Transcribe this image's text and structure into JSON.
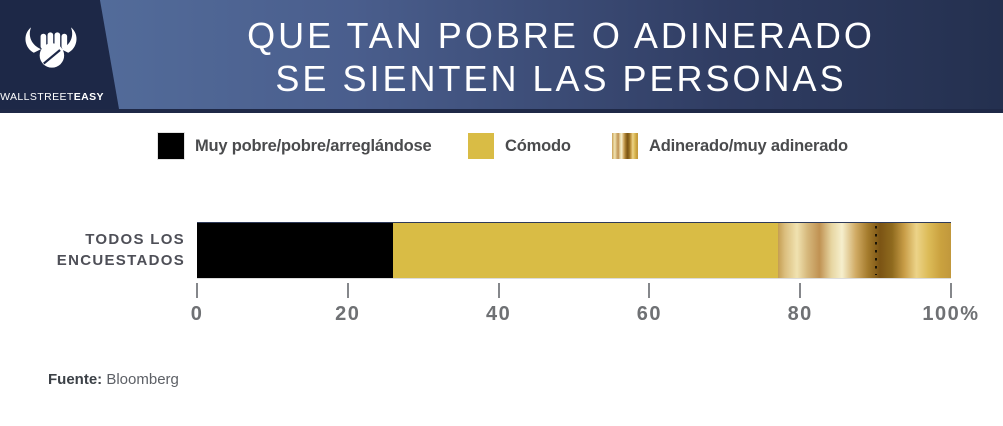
{
  "header": {
    "brand_regular": "WALLSTREET",
    "brand_bold": "EASY",
    "title_line1": "QUE TAN POBRE O ADINERADO",
    "title_line2": "SE SIENTEN LAS PERSONAS"
  },
  "legend": [
    {
      "label": "Muy pobre/pobre/arreglándose",
      "color": "#000000"
    },
    {
      "label": "Cómodo",
      "color": "#d9bc45"
    },
    {
      "label": "Adinerado/muy adinerado",
      "color": "gold-gradient"
    }
  ],
  "chart_data": {
    "type": "bar",
    "orientation": "horizontal-stacked",
    "title": "QUE TAN POBRE O ADINERADO SE SIENTEN LAS PERSONAS",
    "categories": [
      "TODOS LOS ENCUESTADOS"
    ],
    "category_label_lines": [
      "TODOS LOS",
      "ENCUESTADOS"
    ],
    "series": [
      {
        "name": "Muy pobre/pobre/arreglándose",
        "key": "muy-pobre",
        "values": [
          26
        ],
        "color": "#000000"
      },
      {
        "name": "Cómodo",
        "key": "comodo",
        "values": [
          51
        ],
        "color": "#d9bc45"
      },
      {
        "name": "Adinerado/muy adinerado",
        "key": "adinerado",
        "values": [
          23
        ],
        "color": "gold-gradient"
      }
    ],
    "xlim": [
      0,
      100
    ],
    "unit": "%",
    "x_ticks": [
      "0",
      "20",
      "40",
      "60",
      "80",
      "100%"
    ],
    "dotted_marker_x": 90,
    "grid": false,
    "legend_position": "top"
  },
  "source": {
    "label": "Fuente:",
    "value": "Bloomberg"
  },
  "colors": {
    "brand_panel_navy": "#1d2847",
    "header_blue_left": "#56719f",
    "header_blue_right": "#24304f",
    "gold_solid": "#d9bc45",
    "axis_text_gray": "#6f7174",
    "legend_text_gray": "#4a4b4d"
  }
}
